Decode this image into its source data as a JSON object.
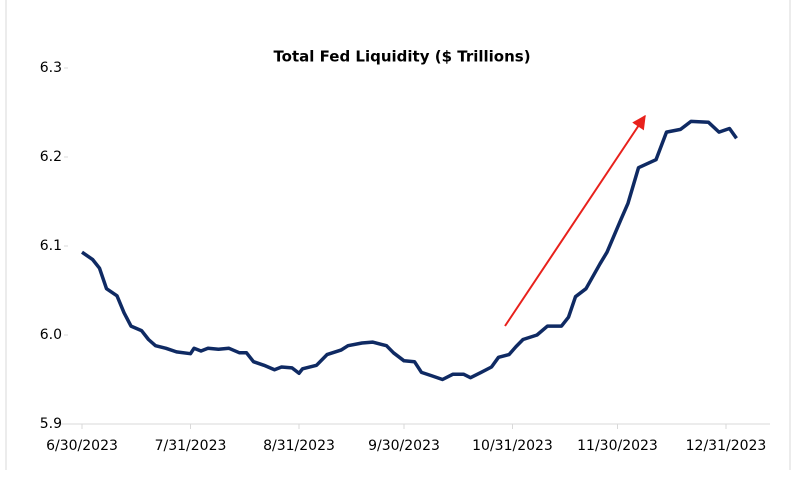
{
  "chart_data": {
    "type": "line",
    "title": "Total Fed Liquidity ($ Trillions)",
    "x": [
      "2023-06-30",
      "2023-07-03",
      "2023-07-05",
      "2023-07-07",
      "2023-07-10",
      "2023-07-12",
      "2023-07-14",
      "2023-07-17",
      "2023-07-19",
      "2023-07-21",
      "2023-07-24",
      "2023-07-27",
      "2023-07-31",
      "2023-08-01",
      "2023-08-03",
      "2023-08-05",
      "2023-08-08",
      "2023-08-11",
      "2023-08-14",
      "2023-08-16",
      "2023-08-18",
      "2023-08-21",
      "2023-08-24",
      "2023-08-26",
      "2023-08-29",
      "2023-08-31",
      "2023-09-01",
      "2023-09-05",
      "2023-09-08",
      "2023-09-12",
      "2023-09-14",
      "2023-09-18",
      "2023-09-21",
      "2023-09-25",
      "2023-09-27",
      "2023-09-30",
      "2023-10-03",
      "2023-10-05",
      "2023-10-08",
      "2023-10-11",
      "2023-10-14",
      "2023-10-17",
      "2023-10-19",
      "2023-10-22",
      "2023-10-25",
      "2023-10-27",
      "2023-10-30",
      "2023-11-01",
      "2023-11-03",
      "2023-11-07",
      "2023-11-10",
      "2023-11-14",
      "2023-11-16",
      "2023-11-18",
      "2023-11-21",
      "2023-11-25",
      "2023-11-27",
      "2023-12-01",
      "2023-12-03",
      "2023-12-06",
      "2023-12-11",
      "2023-12-14",
      "2023-12-18",
      "2023-12-21",
      "2023-12-26",
      "2023-12-29",
      "2024-01-01",
      "2024-01-03"
    ],
    "series": [
      {
        "name": "Total Fed Liquidity",
        "color": "#0f2a63",
        "values": [
          6.093,
          6.085,
          6.075,
          6.052,
          6.044,
          6.025,
          6.01,
          6.005,
          5.995,
          5.988,
          5.985,
          5.981,
          5.979,
          5.985,
          5.982,
          5.985,
          5.984,
          5.985,
          5.98,
          5.98,
          5.97,
          5.966,
          5.961,
          5.964,
          5.963,
          5.957,
          5.962,
          5.966,
          5.978,
          5.983,
          5.988,
          5.991,
          5.992,
          5.988,
          5.98,
          5.971,
          5.97,
          5.958,
          5.954,
          5.95,
          5.956,
          5.956,
          5.952,
          5.958,
          5.964,
          5.975,
          5.978,
          5.987,
          5.995,
          6.0,
          6.01,
          6.01,
          6.02,
          6.043,
          6.052,
          6.08,
          6.093,
          6.13,
          6.148,
          6.188,
          6.197,
          6.228,
          6.231,
          6.24,
          6.239,
          6.228,
          6.232,
          6.221
        ]
      }
    ],
    "xlim": [
      "2023-06-30",
      "2023-12-31"
    ],
    "xticks": [
      {
        "value": "2023-06-30",
        "label": "6/30/2023"
      },
      {
        "value": "2023-07-31",
        "label": "7/31/2023"
      },
      {
        "value": "2023-08-31",
        "label": "8/31/2023"
      },
      {
        "value": "2023-09-30",
        "label": "9/30/2023"
      },
      {
        "value": "2023-10-31",
        "label": "10/31/2023"
      },
      {
        "value": "2023-11-30",
        "label": "11/30/2023"
      },
      {
        "value": "2023-12-31",
        "label": "12/31/2023"
      }
    ],
    "ylim": [
      5.9,
      6.3
    ],
    "yticks": [
      5.9,
      {
        "value": 6,
        "label": "6.0"
      },
      6.1,
      6.2,
      6.3
    ]
  }
}
